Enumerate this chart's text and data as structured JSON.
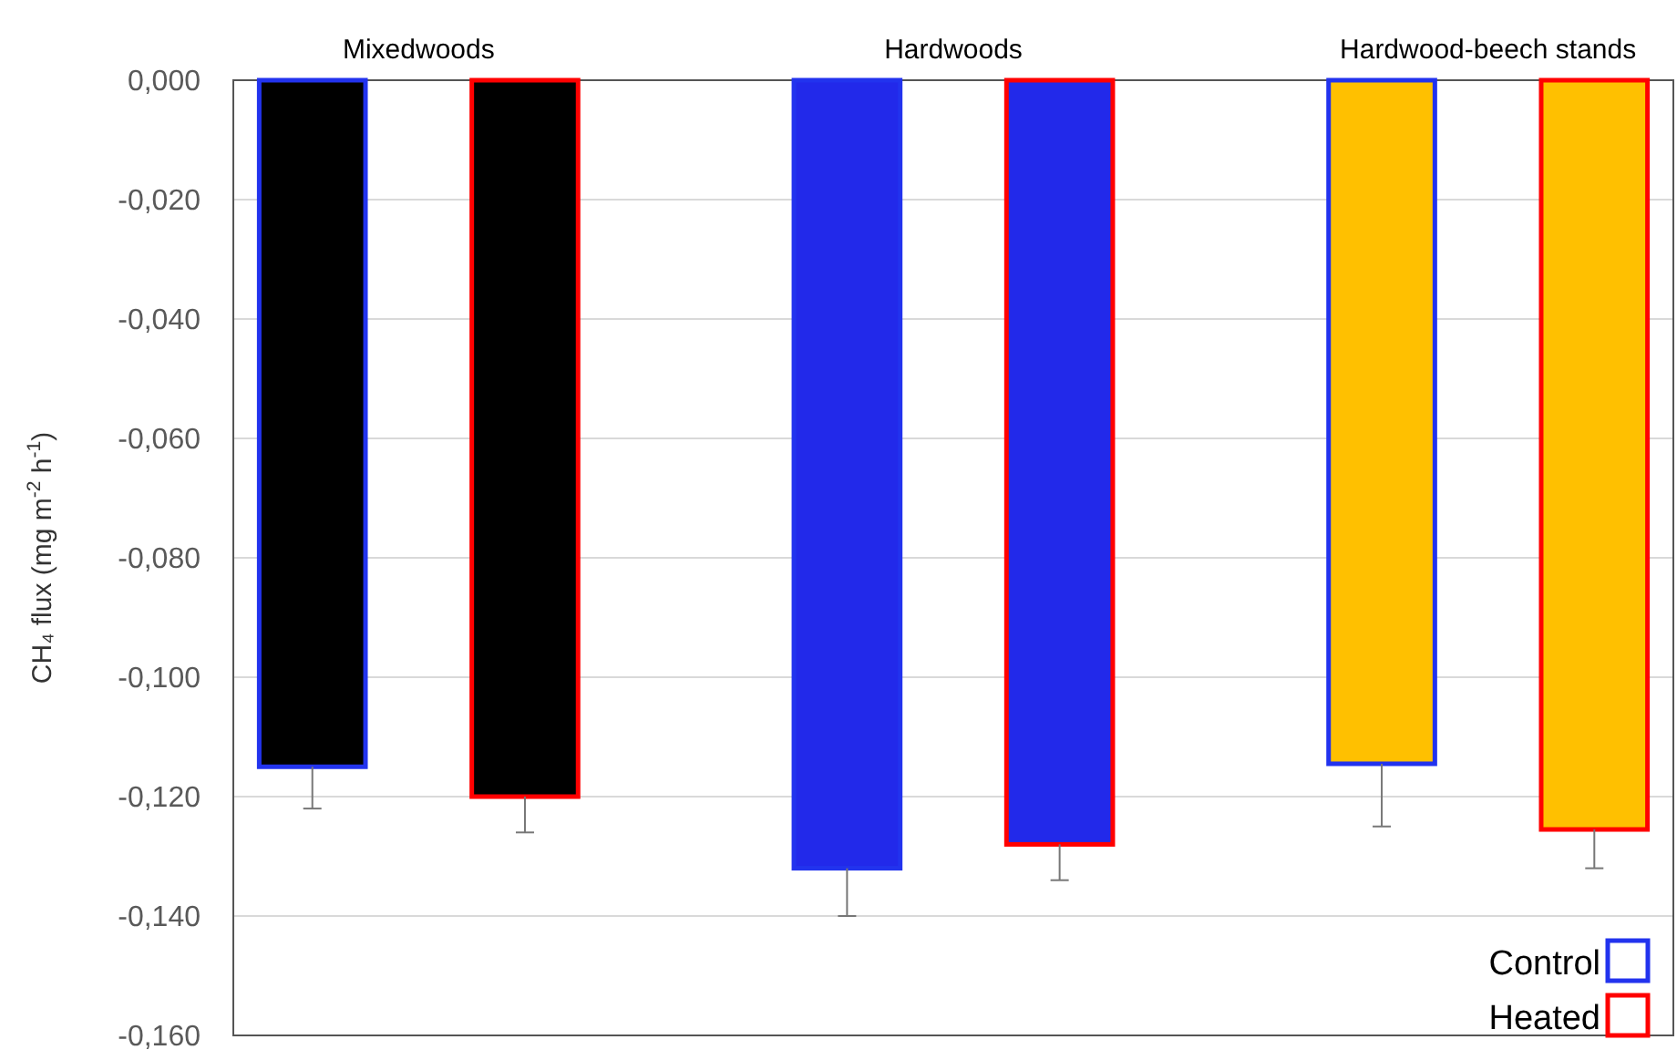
{
  "chart_data": {
    "type": "bar",
    "ylabel": "CH₄ flux (mg m$^{-2}$ h$^{-1}$)",
    "categories": [
      "Mixedwoods",
      "Hardwoods",
      "Hardwood-beech stands"
    ],
    "series": [
      {
        "name": "Control",
        "color": "#2233ee",
        "colors": [
          "#000000",
          "#2229ea",
          "#ffc000"
        ],
        "values": [
          -0.115,
          -0.132,
          -0.1145
        ],
        "errors": [
          [
            -0.122,
            -0.115
          ],
          [
            -0.14,
            -0.132
          ],
          [
            -0.125,
            -0.1145
          ]
        ]
      },
      {
        "name": "Heated",
        "color": "#ff0000",
        "colors": [
          "#000000",
          "#2229ea",
          "#ffc000"
        ],
        "values": [
          -0.12,
          -0.128,
          -0.1255
        ],
        "errors": [
          [
            -0.126,
            -0.12
          ],
          [
            -0.134,
            -0.128
          ],
          [
            -0.132,
            -0.1255
          ]
        ]
      }
    ],
    "ylim": [
      -0.16,
      0
    ],
    "yticks": [
      {
        "value": 0,
        "label": "0,000"
      },
      {
        "value": -0.02,
        "label": "-0,020"
      },
      {
        "value": -0.04,
        "label": "-0,040"
      },
      {
        "value": -0.06,
        "label": "-0,060"
      },
      {
        "value": -0.08,
        "label": "-0,080"
      },
      {
        "value": -0.1,
        "label": "-0,100"
      },
      {
        "value": -0.12,
        "label": "-0,120"
      },
      {
        "value": -0.14,
        "label": "-0,140"
      },
      {
        "value": -0.16,
        "label": "-0,160"
      }
    ],
    "grid": true,
    "legend": "bottom right"
  }
}
